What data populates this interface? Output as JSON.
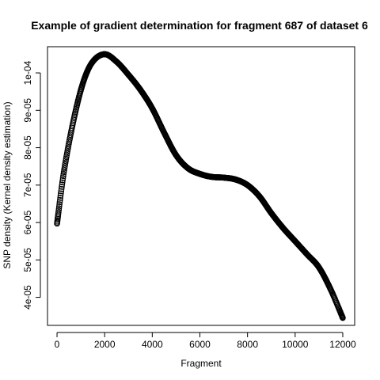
{
  "chart_data": {
    "type": "scatter",
    "title": "Example of gradient determination for fragment 687 of dataset 6",
    "xlabel": "Fragment",
    "ylabel": "SNP density (Kernel density estimation)",
    "xlim": [
      -400,
      12500
    ],
    "ylim": [
      3.25e-05,
      0.000107
    ],
    "x_ticks": [
      0,
      2000,
      4000,
      6000,
      8000,
      10000,
      12000
    ],
    "x_tick_labels": [
      "0",
      "2000",
      "4000",
      "6000",
      "8000",
      "10000",
      "12000"
    ],
    "y_ticks": [
      4e-05,
      5e-05,
      6e-05,
      7e-05,
      8e-05,
      9e-05,
      0.0001
    ],
    "y_tick_labels": [
      "4e-05",
      "5e-05",
      "6e-05",
      "7e-05",
      "8e-05",
      "9e-05",
      "1e-04"
    ],
    "grid": false,
    "marker": "open-circle",
    "color": "#000000",
    "curve_points": [
      [
        0,
        5.97e-05
      ],
      [
        300,
        7.4e-05
      ],
      [
        700,
        8.75e-05
      ],
      [
        1100,
        9.75e-05
      ],
      [
        1500,
        0.000103
      ],
      [
        2000,
        0.000105
      ],
      [
        2500,
        0.000103
      ],
      [
        3000,
        9.95e-05
      ],
      [
        3500,
        9.55e-05
      ],
      [
        4000,
        9.05e-05
      ],
      [
        4500,
        8.4e-05
      ],
      [
        5000,
        7.8e-05
      ],
      [
        5500,
        7.45e-05
      ],
      [
        6000,
        7.3e-05
      ],
      [
        6500,
        7.22e-05
      ],
      [
        7000,
        7.2e-05
      ],
      [
        7500,
        7.15e-05
      ],
      [
        8000,
        7e-05
      ],
      [
        8500,
        6.7e-05
      ],
      [
        9000,
        6.25e-05
      ],
      [
        9500,
        5.85e-05
      ],
      [
        10000,
        5.5e-05
      ],
      [
        10500,
        5.15e-05
      ],
      [
        11000,
        4.8e-05
      ],
      [
        11500,
        4.2e-05
      ],
      [
        12000,
        3.45e-05
      ]
    ]
  }
}
